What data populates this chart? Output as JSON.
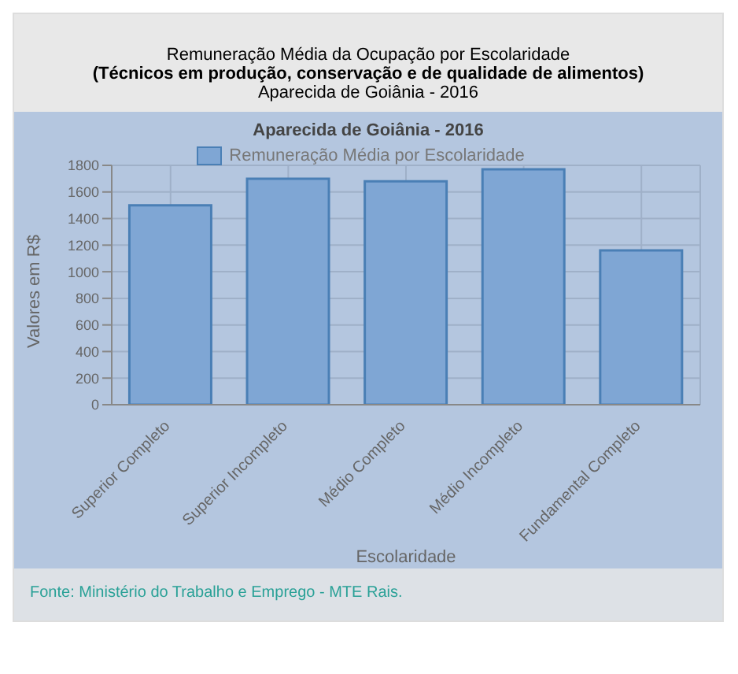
{
  "chart_data": {
    "type": "bar",
    "title": "Remuneração Média da Ocupação por Escolaridade",
    "subtitle": "(Técnicos em produção, conservação e de qualidade de alimentos)",
    "annotations": [
      "Aparecida de Goiânia - 2016",
      "Aparecida de Goiânia - 2016",
      "Fonte: Ministério do Trabalho e Emprego - MTE Rais."
    ],
    "xlabel": "Escolaridade",
    "ylabel": "Valores em R$",
    "categories": [
      "Superior Completo",
      "Superior Incompleto",
      "Médio Completo",
      "Médio Incompleto",
      "Fundamental Completo"
    ],
    "series": [
      {
        "name": "Remuneração Média por Escolaridade",
        "color": "#7fa6d4",
        "values": [
          1500,
          1700,
          1680,
          1770,
          1160
        ]
      }
    ],
    "ylim": [
      0,
      1800
    ],
    "yticks": [
      0,
      200,
      400,
      600,
      800,
      1000,
      1200,
      1400,
      1600,
      1800
    ],
    "grid": true,
    "legend": "top"
  }
}
